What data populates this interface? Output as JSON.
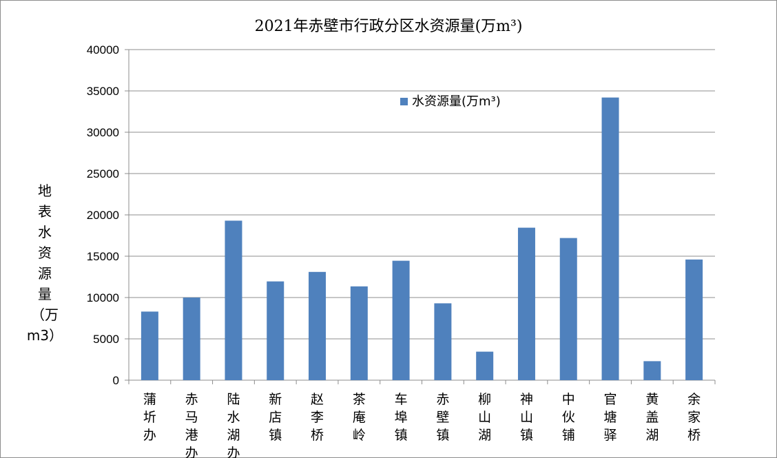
{
  "chart_data": {
    "type": "bar",
    "title": "2021年赤壁市行政分区水资源量(万m³)",
    "ylabel": "地表水资源量（万m3）",
    "ylabel_chars": [
      "地",
      "表",
      "水",
      "资",
      "源",
      "量",
      "（万m3）"
    ],
    "xlabel": "",
    "ylim": [
      0,
      40000
    ],
    "yticks": [
      0,
      5000,
      10000,
      15000,
      20000,
      25000,
      30000,
      35000,
      40000
    ],
    "grid": true,
    "legend_position": "top-center",
    "categories": [
      "蒲圻办",
      "赤马港办",
      "陆水湖办",
      "新店镇",
      "赵李桥",
      "茶庵岭",
      "车埠镇",
      "赤壁镇",
      "柳山湖",
      "神山镇",
      "中伙铺",
      "官塘驿",
      "黄盖湖",
      "余家桥"
    ],
    "series": [
      {
        "name": "水资源量(万m³)",
        "color": "#4f81bd",
        "values": [
          8300,
          10000,
          19300,
          11950,
          13100,
          11350,
          14450,
          9300,
          3450,
          18450,
          17200,
          34200,
          2300,
          14600
        ]
      }
    ]
  }
}
